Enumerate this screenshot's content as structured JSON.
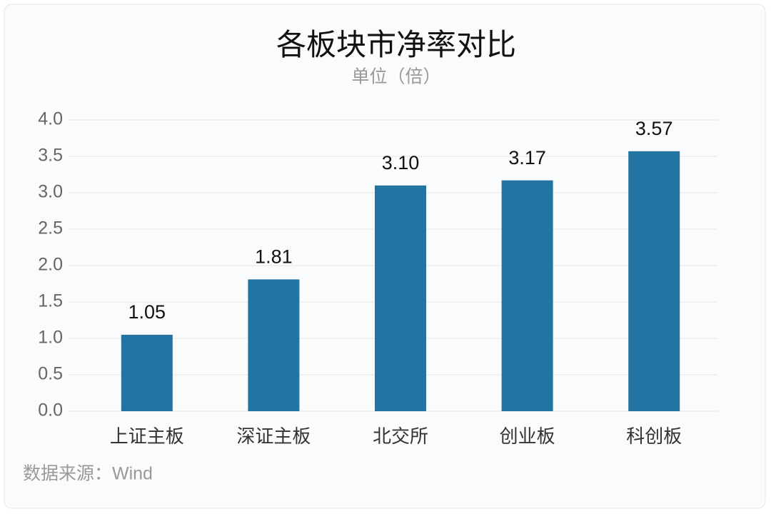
{
  "chart_data": {
    "type": "bar",
    "title": "各板块市净率对比",
    "subtitle": "单位（倍）",
    "categories": [
      "上证主板",
      "深证主板",
      "北交所",
      "创业板",
      "科创板"
    ],
    "values": [
      1.05,
      1.81,
      3.1,
      3.17,
      3.57
    ],
    "value_labels": [
      "1.05",
      "1.81",
      "3.10",
      "3.17",
      "3.57"
    ],
    "color": "#2474a3",
    "ylim": [
      0,
      4
    ],
    "yticks": [
      {
        "value": 0,
        "label": "0.0"
      },
      {
        "value": 0.5,
        "label": "0.5"
      },
      {
        "value": 1,
        "label": "1.0"
      },
      {
        "value": 1.5,
        "label": "1.5"
      },
      {
        "value": 2,
        "label": "2.0"
      },
      {
        "value": 2.5,
        "label": "2.5"
      },
      {
        "value": 3,
        "label": "3.0"
      },
      {
        "value": 3.5,
        "label": "3.5"
      },
      {
        "value": 4,
        "label": "4.0"
      }
    ],
    "grid": true,
    "source": "数据来源：Wind"
  }
}
